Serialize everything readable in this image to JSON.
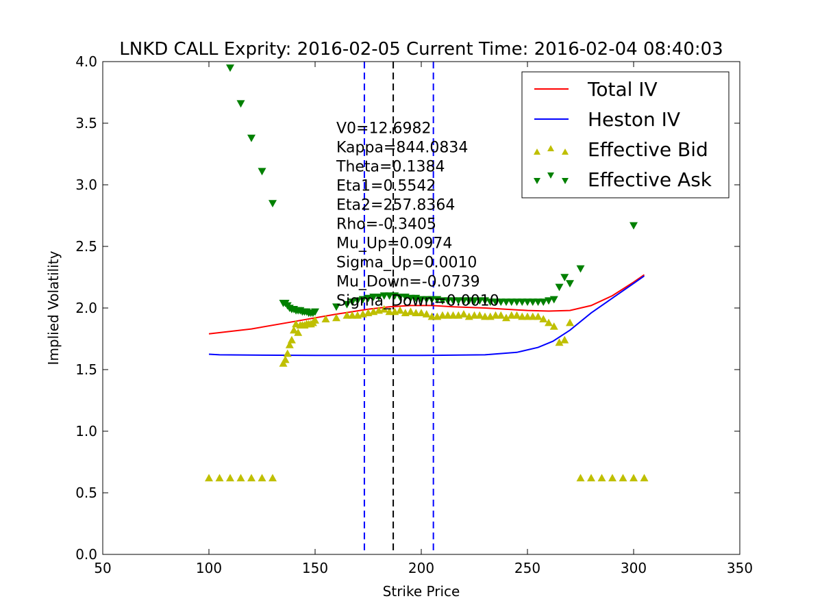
{
  "chart_data": {
    "type": "scatter",
    "title": "LNKD CALL Exprity: 2016-02-05 Current Time: 2016-02-04 08:40:03",
    "xlabel": "Strike Price",
    "ylabel": "Implied Volatility",
    "xlim": [
      50,
      350
    ],
    "ylim": [
      0.0,
      4.0
    ],
    "xticks": [
      50,
      100,
      150,
      200,
      250,
      300,
      350
    ],
    "xtick_labels": [
      "50",
      "100",
      "150",
      "200",
      "250",
      "300",
      "350"
    ],
    "yticks": [
      0.0,
      0.5,
      1.0,
      1.5,
      2.0,
      2.5,
      3.0,
      3.5,
      4.0
    ],
    "ytick_labels": [
      "0.0",
      "0.5",
      "1.0",
      "1.5",
      "2.0",
      "2.5",
      "3.0",
      "3.5",
      "4.0"
    ],
    "grid": false,
    "legend_position": "top-right",
    "legend": [
      {
        "label": "Total IV",
        "kind": "line",
        "color": "#ff0000"
      },
      {
        "label": "Heston IV",
        "kind": "line",
        "color": "#0000ff"
      },
      {
        "label": "Effective Bid",
        "kind": "triangle-up",
        "color": "#bfbf00"
      },
      {
        "label": "Effective Ask",
        "kind": "triangle-down",
        "color": "#008000"
      }
    ],
    "vlines": [
      {
        "x": 173.2,
        "color": "#0000ff",
        "style": "dashed"
      },
      {
        "x": 186.8,
        "color": "#000000",
        "style": "dashed"
      },
      {
        "x": 205.7,
        "color": "#0000ff",
        "style": "dashed"
      }
    ],
    "annotation": {
      "x": 160,
      "y": 3.42,
      "lines": [
        "V0=12.6982",
        "Kappa=844.0834",
        "Theta=0.1384",
        "Eta1=0.5542",
        "Eta2=257.8364",
        "Rho=-0.3405",
        "Mu_Up=0.0974",
        "Sigma_Up=0.0010",
        "Mu_Down=-0.0739",
        "Sigma_Down=0.0010"
      ]
    },
    "series": [
      {
        "name": "Total IV",
        "kind": "line",
        "color": "#ff0000",
        "x": [
          100,
          120,
          140,
          160,
          175,
          185,
          195,
          205,
          215,
          230,
          250,
          260,
          270,
          280,
          290,
          300,
          305
        ],
        "y": [
          1.79,
          1.83,
          1.89,
          1.95,
          1.99,
          2.01,
          2.02,
          2.02,
          2.01,
          2.0,
          1.98,
          1.975,
          1.98,
          2.02,
          2.1,
          2.21,
          2.27
        ]
      },
      {
        "name": "Heston IV",
        "kind": "line",
        "color": "#0000ff",
        "x": [
          100,
          105,
          120,
          150,
          200,
          230,
          245,
          255,
          262,
          270,
          280,
          290,
          300,
          305
        ],
        "y": [
          1.625,
          1.62,
          1.618,
          1.615,
          1.615,
          1.62,
          1.64,
          1.68,
          1.73,
          1.82,
          1.96,
          2.08,
          2.2,
          2.26
        ]
      },
      {
        "name": "Effective Bid",
        "kind": "triangle-up",
        "color": "#bfbf00",
        "x": [
          100,
          105,
          110,
          115,
          120,
          125,
          130,
          135,
          136,
          137,
          138,
          139,
          140,
          141,
          142,
          143,
          144,
          145,
          146,
          147,
          148,
          149,
          150,
          155,
          160,
          165,
          167.5,
          170,
          172.5,
          175,
          177.5,
          180,
          182.5,
          185,
          187.5,
          190,
          192.5,
          195,
          197.5,
          200,
          202.5,
          205,
          207.5,
          210,
          212.5,
          215,
          217.5,
          220,
          222.5,
          225,
          227.5,
          230,
          232.5,
          235,
          237.5,
          240,
          242.5,
          245,
          247.5,
          250,
          252.5,
          255,
          257.5,
          260,
          262.5,
          265,
          267.5,
          270,
          275,
          280,
          285,
          290,
          295,
          300,
          305
        ],
        "y": [
          0.62,
          0.62,
          0.62,
          0.62,
          0.62,
          0.62,
          0.62,
          1.55,
          1.58,
          1.63,
          1.7,
          1.74,
          1.82,
          1.87,
          1.8,
          1.86,
          1.86,
          1.86,
          1.87,
          1.87,
          1.87,
          1.88,
          1.9,
          1.91,
          1.92,
          1.94,
          1.94,
          1.94,
          1.95,
          1.96,
          1.97,
          1.98,
          1.99,
          1.97,
          1.97,
          1.98,
          1.96,
          1.97,
          1.96,
          1.96,
          1.95,
          1.93,
          1.93,
          1.94,
          1.94,
          1.94,
          1.94,
          1.95,
          1.93,
          1.94,
          1.94,
          1.93,
          1.93,
          1.94,
          1.94,
          1.92,
          1.94,
          1.94,
          1.93,
          1.93,
          1.93,
          1.93,
          1.91,
          1.88,
          1.85,
          1.72,
          1.74,
          1.88,
          0.62,
          0.62,
          0.62,
          0.62,
          0.62,
          0.62,
          0.62
        ]
      },
      {
        "name": "Effective Ask",
        "kind": "triangle-down",
        "color": "#008000",
        "x": [
          110,
          115,
          120,
          125,
          130,
          135,
          136,
          137,
          138,
          139,
          140,
          141,
          142,
          143,
          144,
          145,
          146,
          147,
          148,
          149,
          150,
          160,
          165,
          167.5,
          170,
          172.5,
          175,
          177.5,
          180,
          182.5,
          185,
          187.5,
          190,
          192.5,
          195,
          197.5,
          200,
          202.5,
          205,
          207.5,
          210,
          212.5,
          215,
          217.5,
          220,
          222.5,
          225,
          227.5,
          230,
          232.5,
          235,
          237.5,
          240,
          242.5,
          245,
          247.5,
          250,
          252.5,
          255,
          257.5,
          260,
          262.5,
          265,
          267.5,
          270,
          275,
          300
        ],
        "y": [
          3.95,
          3.66,
          3.38,
          3.11,
          2.85,
          2.04,
          2.04,
          2.02,
          2.0,
          1.99,
          1.99,
          1.98,
          1.98,
          1.98,
          1.97,
          1.97,
          1.97,
          1.96,
          1.96,
          1.96,
          1.97,
          2.01,
          2.03,
          2.05,
          2.06,
          2.07,
          2.08,
          2.09,
          2.09,
          2.1,
          2.1,
          2.1,
          2.09,
          2.09,
          2.08,
          2.08,
          2.07,
          2.07,
          2.07,
          2.07,
          2.06,
          2.06,
          2.06,
          2.06,
          2.06,
          2.06,
          2.06,
          2.06,
          2.06,
          2.05,
          2.05,
          2.05,
          2.05,
          2.05,
          2.05,
          2.05,
          2.05,
          2.05,
          2.05,
          2.05,
          2.06,
          2.07,
          2.17,
          2.25,
          2.2,
          2.32,
          2.67
        ]
      }
    ]
  }
}
